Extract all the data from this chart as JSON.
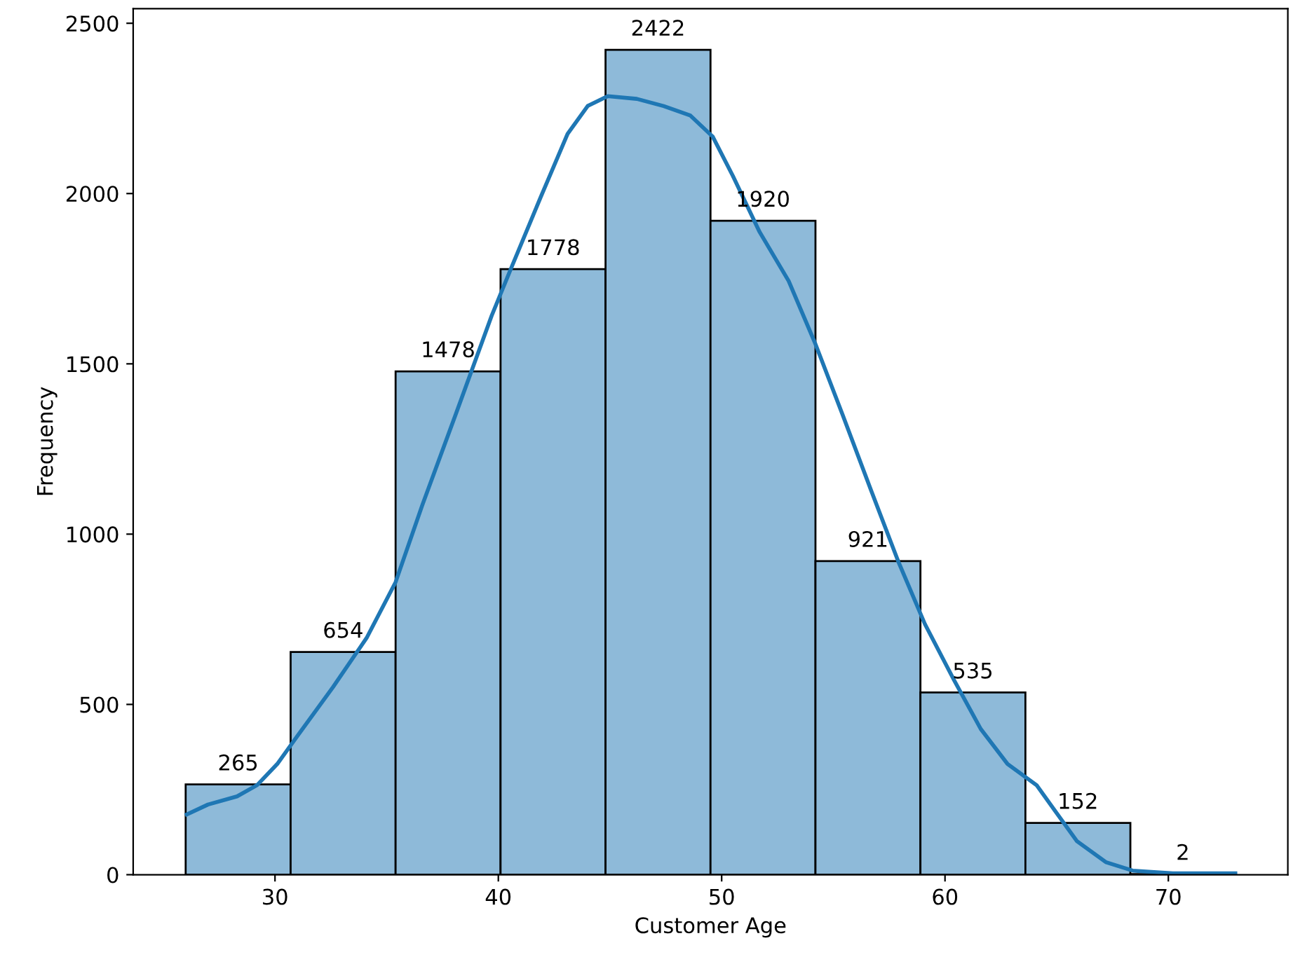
{
  "chart_data": {
    "type": "histogram",
    "xlabel": "Customer Age",
    "ylabel": "Frequency",
    "bins": [
      26,
      30.7,
      35.4,
      40.1,
      44.8,
      49.5,
      54.2,
      58.9,
      63.6,
      68.3,
      73
    ],
    "values": [
      265,
      654,
      1478,
      1778,
      2422,
      1920,
      921,
      535,
      152,
      2
    ],
    "color": "#8ebad9",
    "value_labels": [
      "265",
      "654",
      "1478",
      "1778",
      "2422",
      "1920",
      "921",
      "535",
      "152",
      "2"
    ],
    "series": [
      {
        "type": "line",
        "color": "#1f77b4",
        "x": [
          26.05,
          27.0,
          28.3,
          29.2,
          30.1,
          31.0,
          32.6,
          34.1,
          35.4,
          36.6,
          38.1,
          39.7,
          40.6,
          41.9,
          43.1,
          44.0,
          44.9,
          46.2,
          47.4,
          48.6,
          49.6,
          50.5,
          51.7,
          53.0,
          54.2,
          55.4,
          56.7,
          57.9,
          59.1,
          60.4,
          61.6,
          62.8,
          64.1,
          65.0,
          65.9,
          67.2,
          68.4,
          70.2,
          73.0
        ],
        "values": [
          177,
          206,
          230,
          263,
          325,
          407,
          551,
          695,
          859,
          1086,
          1353,
          1641,
          1785,
          1990,
          2175,
          2257,
          2286,
          2278,
          2257,
          2229,
          2167,
          2052,
          1887,
          1743,
          1558,
          1353,
          1127,
          921,
          736,
          572,
          428,
          325,
          263,
          181,
          99,
          37,
          12,
          4,
          4
        ]
      }
    ],
    "xlim": [
      23.65,
      75.35
    ],
    "ylim": [
      0,
      2543
    ],
    "xticks": [
      30,
      40,
      50,
      60,
      70
    ],
    "yticks": [
      0,
      500,
      1000,
      1500,
      2000,
      2500
    ],
    "grid": false
  }
}
